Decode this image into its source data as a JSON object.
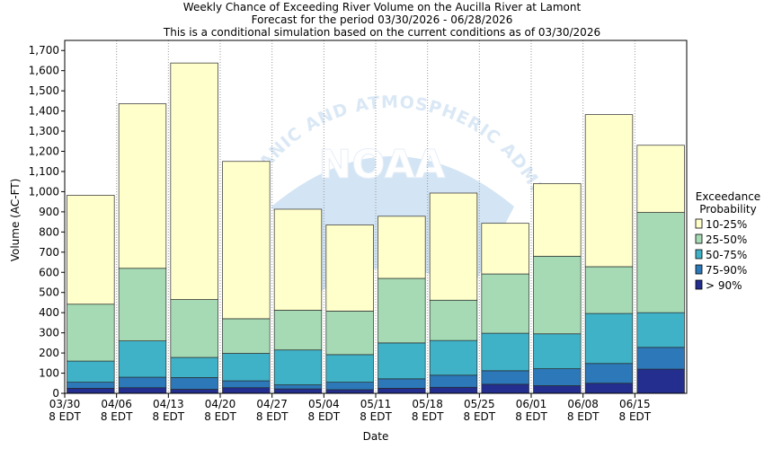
{
  "chart_data": {
    "type": "bar",
    "stacked": true,
    "title_lines": [
      "Weekly Chance of Exceeding River Volume on the Aucilla River at Lamont",
      "Forecast for the period 03/30/2026 - 06/28/2026",
      "This is a conditional simulation based on the current conditions as of 03/30/2026"
    ],
    "xlabel": "Date",
    "ylabel": "Volume (AC-FT)",
    "ylim": [
      0,
      1750
    ],
    "yticks": [
      0,
      100,
      200,
      300,
      400,
      500,
      600,
      700,
      800,
      900,
      1000,
      1100,
      1200,
      1300,
      1400,
      1500,
      1600,
      1700
    ],
    "ytick_labels": [
      "0",
      "100",
      "200",
      "300",
      "400",
      "500",
      "600",
      "700",
      "800",
      "900",
      "1,000",
      "1,100",
      "1,200",
      "1,300",
      "1,400",
      "1,500",
      "1,600",
      "1,700"
    ],
    "xticks": [
      {
        "date": "03/30",
        "sub": "8 EDT"
      },
      {
        "date": "04/06",
        "sub": "8 EDT"
      },
      {
        "date": "04/13",
        "sub": "8 EDT"
      },
      {
        "date": "04/20",
        "sub": "8 EDT"
      },
      {
        "date": "04/27",
        "sub": "8 EDT"
      },
      {
        "date": "05/04",
        "sub": "8 EDT"
      },
      {
        "date": "05/11",
        "sub": "8 EDT"
      },
      {
        "date": "05/18",
        "sub": "8 EDT"
      },
      {
        "date": "05/25",
        "sub": "8 EDT"
      },
      {
        "date": "06/01",
        "sub": "8 EDT"
      },
      {
        "date": "06/08",
        "sub": "8 EDT"
      },
      {
        "date": "06/15",
        "sub": "8 EDT"
      }
    ],
    "weeks": [
      "03/30",
      "04/06",
      "04/13",
      "04/20",
      "04/27",
      "05/04",
      "05/11",
      "05/18",
      "05/25",
      "06/01",
      "06/08",
      "06/15"
    ],
    "bands": [
      {
        "name": "> 90%",
        "color": "#232e8f",
        "values": [
          25,
          28,
          20,
          28,
          22,
          18,
          25,
          30,
          45,
          38,
          50,
          120
        ]
      },
      {
        "name": "75-90%",
        "color": "#2c78b8",
        "values": [
          55,
          80,
          78,
          62,
          42,
          55,
          72,
          90,
          112,
          122,
          148,
          228
        ]
      },
      {
        "name": "50-75%",
        "color": "#40b2c8",
        "values": [
          160,
          260,
          178,
          198,
          215,
          192,
          250,
          262,
          298,
          295,
          396,
          400
        ]
      },
      {
        "name": "25-50%",
        "color": "#a5dab4",
        "values": [
          442,
          620,
          465,
          370,
          412,
          408,
          570,
          462,
          592,
          680,
          628,
          897
        ]
      },
      {
        "name": "10-25%",
        "color": "#ffffcc",
        "values": [
          982,
          1436,
          1638,
          1150,
          913,
          835,
          878,
          993,
          843,
          1040,
          1382,
          1230
        ]
      }
    ],
    "note": "band values are the upper boundary of each band (cumulative stack height)",
    "legend": {
      "title_lines": [
        "Exceedance",
        "Probability"
      ],
      "placement": "right",
      "order": [
        "10-25%",
        "25-50%",
        "50-75%",
        "75-90%",
        "> 90%"
      ]
    },
    "grid": "vertical dotted"
  },
  "watermark": {
    "logo_text": "NOAA",
    "ring_text": "NATIONAL OCEANIC AND ATMOSPHERIC ADMINISTRATION"
  }
}
